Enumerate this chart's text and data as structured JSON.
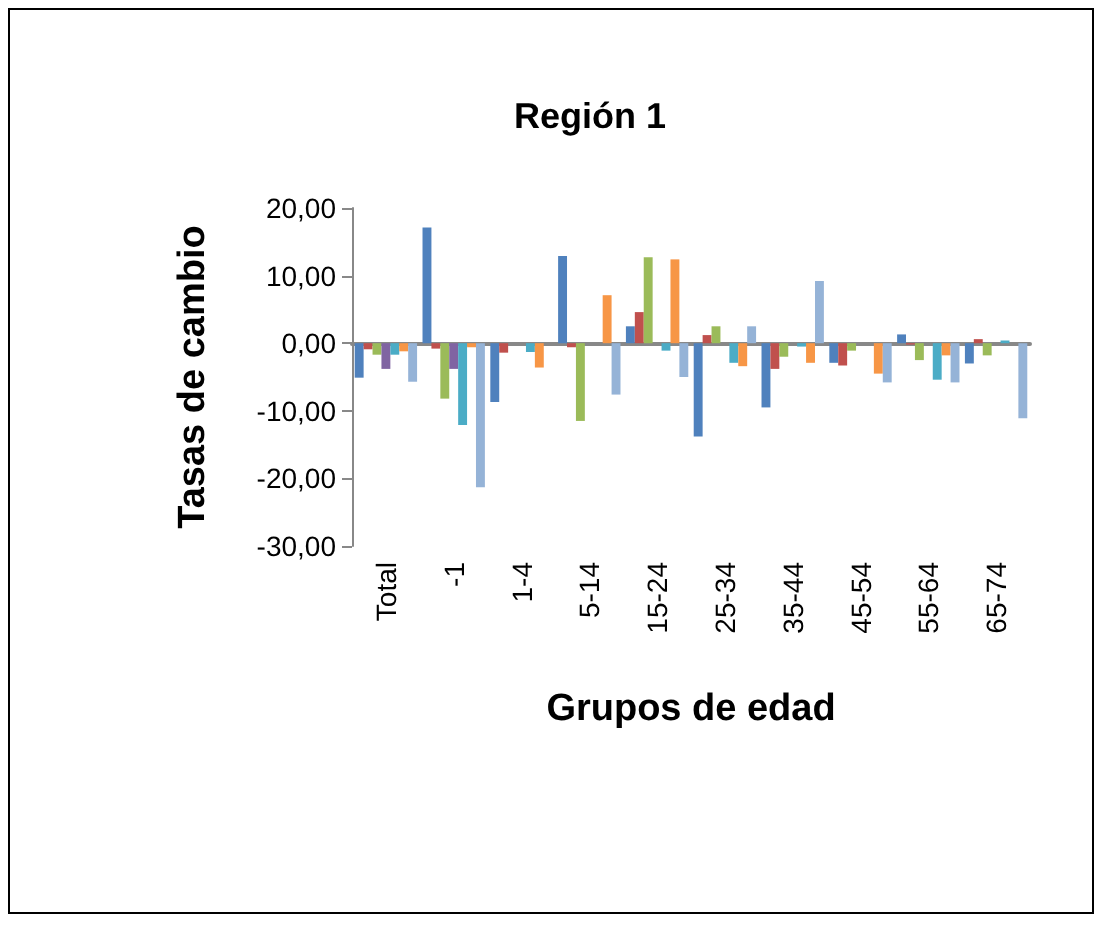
{
  "chart_data": {
    "type": "bar",
    "title": "Región 1",
    "xlabel": "Grupos de edad",
    "ylabel": "Tasas de cambio",
    "categories": [
      "Total",
      "-1",
      "1-4",
      "5-14",
      "15-24",
      "25-34",
      "35-44",
      "45-54",
      "55-64",
      "65-74"
    ],
    "series": [
      {
        "color": "#4f81bd",
        "values": [
          -5.1,
          17.1,
          -8.7,
          12.9,
          2.5,
          -13.8,
          -9.5,
          -2.9,
          1.3,
          -3.0
        ]
      },
      {
        "color": "#c0504d",
        "values": [
          -0.9,
          -0.8,
          -1.4,
          -0.6,
          4.6,
          1.2,
          -3.8,
          -3.3,
          -0.2,
          0.6
        ]
      },
      {
        "color": "#9bbb59",
        "values": [
          -1.7,
          -8.2,
          0,
          -11.5,
          12.7,
          2.5,
          -2.0,
          -1.1,
          -2.5,
          -1.8
        ]
      },
      {
        "color": "#8064a2",
        "values": [
          -3.8,
          -3.8,
          0,
          0,
          0,
          0,
          0,
          0,
          0,
          0
        ]
      },
      {
        "color": "#4bacc6",
        "values": [
          -1.7,
          -12.1,
          -1.3,
          0,
          -1.1,
          -2.9,
          -0.5,
          0,
          -5.4,
          0.4
        ]
      },
      {
        "color": "#f79646",
        "values": [
          -1.2,
          -0.6,
          -3.6,
          7.1,
          12.4,
          -3.4,
          -2.9,
          -4.5,
          -1.8,
          0
        ]
      },
      {
        "color": "#95b3d7",
        "values": [
          -5.7,
          -21.3,
          0,
          -7.6,
          -5.0,
          2.5,
          9.2,
          -5.8,
          -5.8,
          -11.1
        ]
      }
    ],
    "ylim": [
      -30,
      20
    ],
    "yticks": [
      {
        "value": -30,
        "label": "-30,00"
      },
      {
        "value": -20,
        "label": "-20,00"
      },
      {
        "value": -10,
        "label": "-10,00"
      },
      {
        "value": 0,
        "label": "0,00"
      },
      {
        "value": 10,
        "label": "10,00"
      },
      {
        "value": 20,
        "label": "20,00"
      }
    ],
    "tick_labels": [
      "x",
      "y"
    ]
  }
}
